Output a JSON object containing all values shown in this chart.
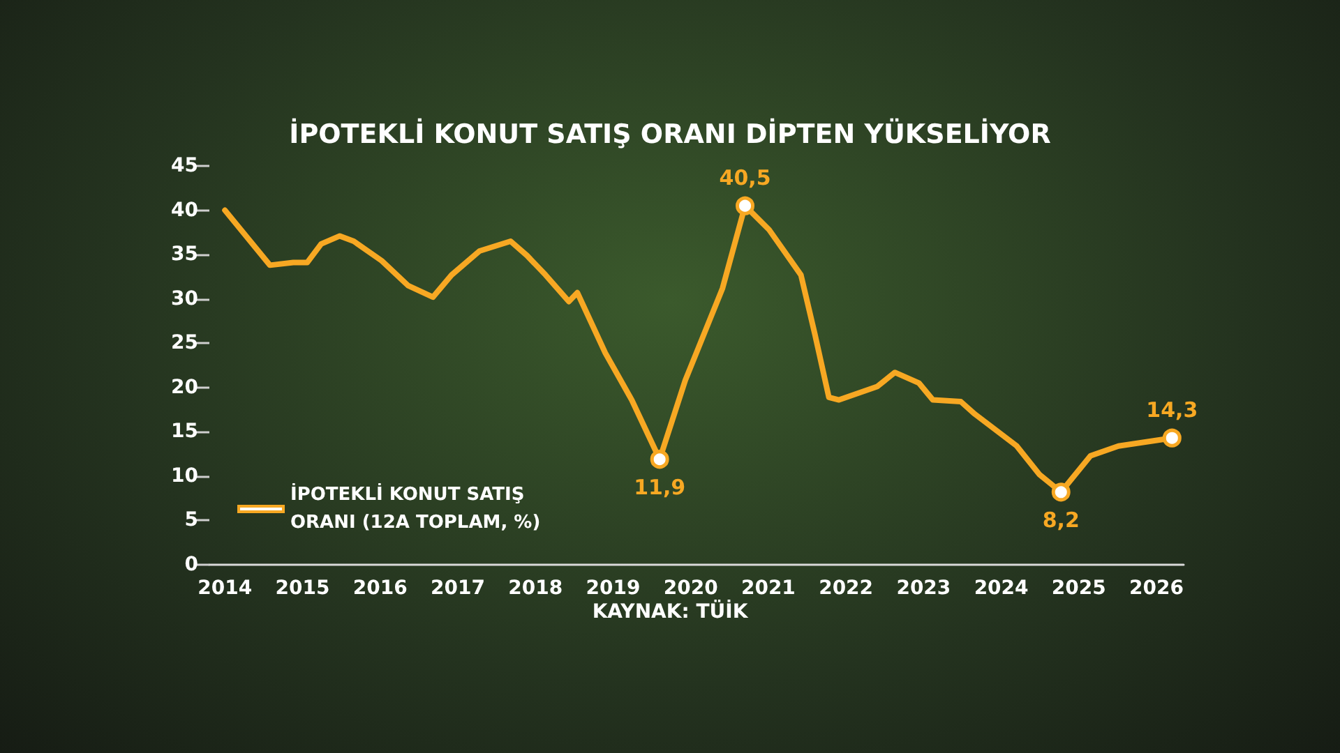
{
  "chart_data": {
    "type": "line",
    "title": "İPOTEKLİ KONUT SATIŞ ORANI DİPTEN YÜKSELİYOR",
    "annotations": [
      "KAYNAK: TÜİK"
    ],
    "x": [
      2014.0,
      2014.58,
      2014.88,
      2015.06,
      2015.24,
      2015.48,
      2015.66,
      2016.02,
      2016.36,
      2016.68,
      2016.92,
      2017.28,
      2017.68,
      2017.89,
      2018.13,
      2018.43,
      2018.54,
      2018.9,
      2019.24,
      2019.6,
      2019.93,
      2020.41,
      2020.7,
      2021.01,
      2021.42,
      2021.6,
      2021.78,
      2021.91,
      2022.4,
      2022.63,
      2022.94,
      2023.12,
      2023.48,
      2023.66,
      2024.2,
      2024.49,
      2024.77,
      2025.15,
      2025.51,
      2026.2
    ],
    "series": [
      {
        "name": "İPOTEKLİ KONUT SATIŞ ORANI (12A TOPLAM, %)",
        "color": "#f7a823",
        "values": [
          40.0,
          33.8,
          34.1,
          34.1,
          36.2,
          37.1,
          36.5,
          34.3,
          31.5,
          30.2,
          32.7,
          35.4,
          36.5,
          34.9,
          32.7,
          29.7,
          30.7,
          23.9,
          18.6,
          11.9,
          20.8,
          31.2,
          40.5,
          37.8,
          32.7,
          26.0,
          18.9,
          18.6,
          20.1,
          21.7,
          20.5,
          18.6,
          18.4,
          17.0,
          13.4,
          10.2,
          8.2,
          12.3,
          13.4,
          14.3
        ],
        "value_labels": [
          null,
          null,
          null,
          null,
          null,
          null,
          null,
          null,
          null,
          null,
          null,
          null,
          null,
          null,
          null,
          null,
          null,
          null,
          null,
          "11,9",
          null,
          null,
          "40,5",
          null,
          null,
          null,
          null,
          null,
          null,
          null,
          null,
          null,
          null,
          null,
          null,
          null,
          "8,2",
          null,
          null,
          "14,3"
        ]
      }
    ],
    "xlim": [
      2013.8,
      2026.35
    ],
    "xticks": [
      2014,
      2015,
      2016,
      2017,
      2018,
      2019,
      2020,
      2021,
      2022,
      2023,
      2024,
      2025,
      2026
    ],
    "ylim": [
      0,
      45
    ],
    "yticks": [
      0,
      5,
      10,
      15,
      20,
      25,
      30,
      35,
      40,
      45
    ],
    "grid": false,
    "legend": "bottom left",
    "line_style": "solid"
  }
}
